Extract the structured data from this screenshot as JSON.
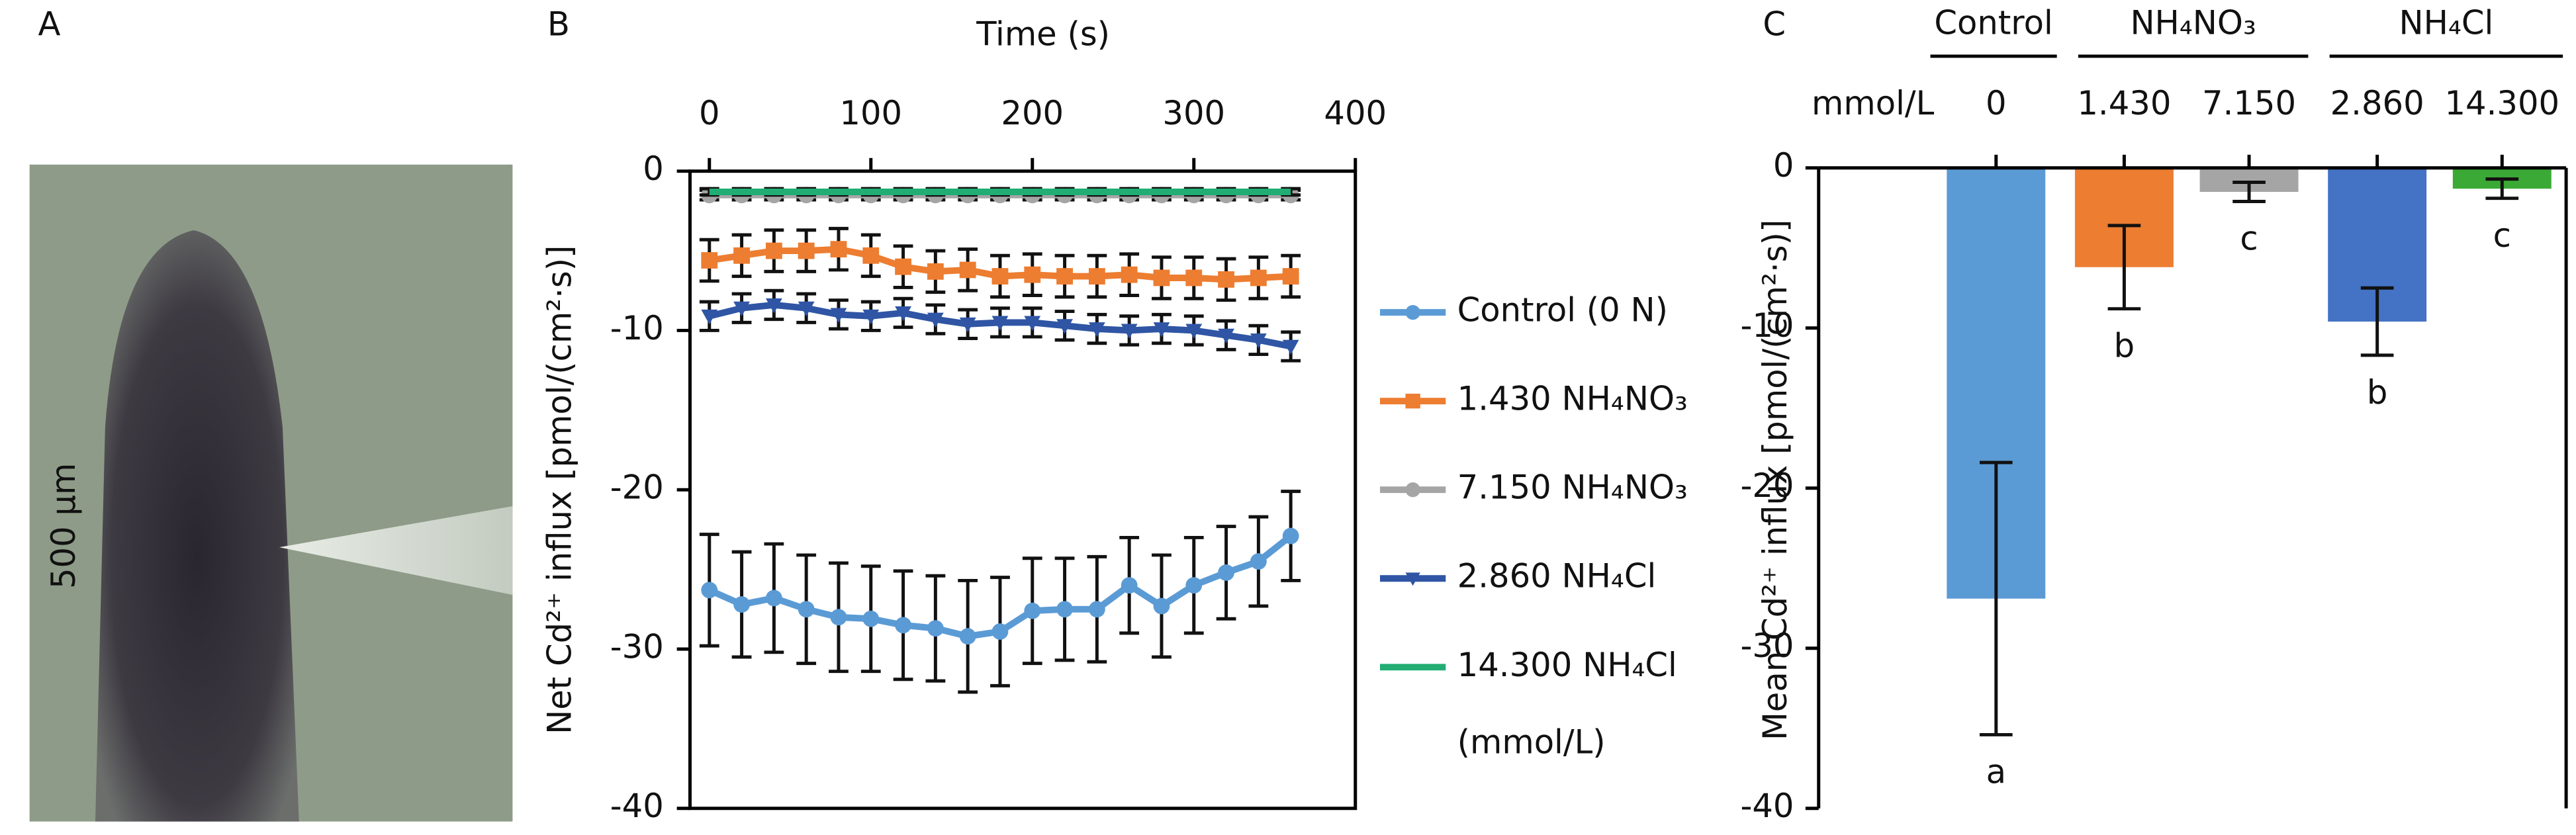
{
  "panel_a": {
    "label": "A",
    "scale_bar": "500 µm"
  },
  "chart_data": [
    {
      "type": "line",
      "label": "B",
      "xlabel": "Time (s)",
      "ylabel": "Net Cd²⁺ influx [pmol/(cm²·s)]",
      "x": [
        0,
        20,
        40,
        60,
        80,
        100,
        120,
        140,
        160,
        180,
        200,
        220,
        240,
        260,
        280,
        300,
        320,
        340,
        360
      ],
      "xlim": [
        -12,
        400
      ],
      "xticks": [
        0,
        100,
        200,
        300,
        400
      ],
      "ylim": [
        -40,
        0
      ],
      "yticks": [
        0,
        -10,
        -20,
        -30,
        -40
      ],
      "legend_note": "(mmol/L)",
      "series": [
        {
          "name": "Control (0 N)",
          "color": "#5b9bd5",
          "marker": "circle",
          "values": [
            -26.3,
            -27.2,
            -26.8,
            -27.5,
            -28.0,
            -28.1,
            -28.5,
            -28.7,
            -29.2,
            -28.9,
            -27.6,
            -27.5,
            -27.5,
            -26.0,
            -27.3,
            -26.0,
            -25.2,
            -24.5,
            -22.9
          ],
          "errors": [
            3.5,
            3.3,
            3.4,
            3.4,
            3.4,
            3.3,
            3.4,
            3.3,
            3.5,
            3.4,
            3.3,
            3.2,
            3.3,
            3.0,
            3.2,
            3.0,
            2.9,
            2.8,
            2.8
          ]
        },
        {
          "name": "1.430 NH₄NO₃",
          "color": "#ed7d31",
          "marker": "square",
          "values": [
            -5.6,
            -5.3,
            -5.0,
            -5.0,
            -4.9,
            -5.3,
            -6.0,
            -6.3,
            -6.2,
            -6.6,
            -6.5,
            -6.6,
            -6.6,
            -6.5,
            -6.7,
            -6.7,
            -6.8,
            -6.7,
            -6.6
          ],
          "errors": [
            1.3,
            1.3,
            1.3,
            1.3,
            1.3,
            1.3,
            1.3,
            1.3,
            1.3,
            1.3,
            1.3,
            1.3,
            1.3,
            1.3,
            1.3,
            1.3,
            1.3,
            1.3,
            1.3
          ]
        },
        {
          "name": "7.150 NH₄NO₃",
          "color": "#a5a5a5",
          "marker": "circle",
          "values": [
            -1.5,
            -1.5,
            -1.5,
            -1.5,
            -1.5,
            -1.5,
            -1.5,
            -1.5,
            -1.5,
            -1.5,
            -1.5,
            -1.5,
            -1.5,
            -1.5,
            -1.5,
            -1.5,
            -1.5,
            -1.5,
            -1.5
          ],
          "errors": [
            0.3,
            0.3,
            0.3,
            0.3,
            0.3,
            0.3,
            0.3,
            0.3,
            0.3,
            0.3,
            0.3,
            0.3,
            0.3,
            0.3,
            0.3,
            0.3,
            0.3,
            0.3,
            0.3
          ]
        },
        {
          "name": "2.860 NH₄Cl",
          "color": "#2f55a4",
          "marker": "triangle",
          "values": [
            -9.1,
            -8.6,
            -8.4,
            -8.6,
            -9.0,
            -9.1,
            -8.9,
            -9.3,
            -9.6,
            -9.5,
            -9.5,
            -9.7,
            -9.9,
            -10.0,
            -9.9,
            -10.0,
            -10.3,
            -10.6,
            -11.0
          ],
          "errors": [
            0.9,
            0.9,
            0.9,
            0.9,
            0.9,
            0.9,
            0.9,
            0.9,
            0.9,
            0.9,
            0.9,
            0.9,
            0.9,
            0.9,
            0.9,
            0.9,
            0.9,
            0.9,
            0.9
          ]
        },
        {
          "name": "14.300 NH₄Cl",
          "color": "#21ad73",
          "marker": "none",
          "values": [
            -1.3,
            -1.3,
            -1.3,
            -1.3,
            -1.3,
            -1.3,
            -1.3,
            -1.3,
            -1.3,
            -1.3,
            -1.3,
            -1.3,
            -1.3,
            -1.3,
            -1.3,
            -1.3,
            -1.3,
            -1.3,
            -1.3
          ],
          "errors": [
            0.2,
            0.2,
            0.2,
            0.2,
            0.2,
            0.2,
            0.2,
            0.2,
            0.2,
            0.2,
            0.2,
            0.2,
            0.2,
            0.2,
            0.2,
            0.2,
            0.2,
            0.2,
            0.2
          ]
        }
      ]
    },
    {
      "type": "bar",
      "label": "C",
      "ylabel": "Mean Cd²⁺ influx [pmol/(cm²·s)]",
      "unit_label": "mmol/L",
      "groups": [
        "Control",
        "NH₄NO₃",
        "NH₄Cl"
      ],
      "categories": [
        "0",
        "1.430",
        "7.150",
        "2.860",
        "14.300"
      ],
      "values": [
        -26.9,
        -6.2,
        -1.5,
        -9.6,
        -1.3
      ],
      "errors": [
        8.5,
        2.6,
        0.6,
        2.1,
        0.6
      ],
      "annotations": [
        "a",
        "b",
        "c",
        "b",
        "c"
      ],
      "colors": [
        "#5b9bd5",
        "#ed7d31",
        "#a5a5a5",
        "#4472c4",
        "#3aa935"
      ],
      "ylim": [
        -40,
        0
      ],
      "yticks": [
        0,
        -10,
        -20,
        -30,
        -40
      ]
    }
  ]
}
